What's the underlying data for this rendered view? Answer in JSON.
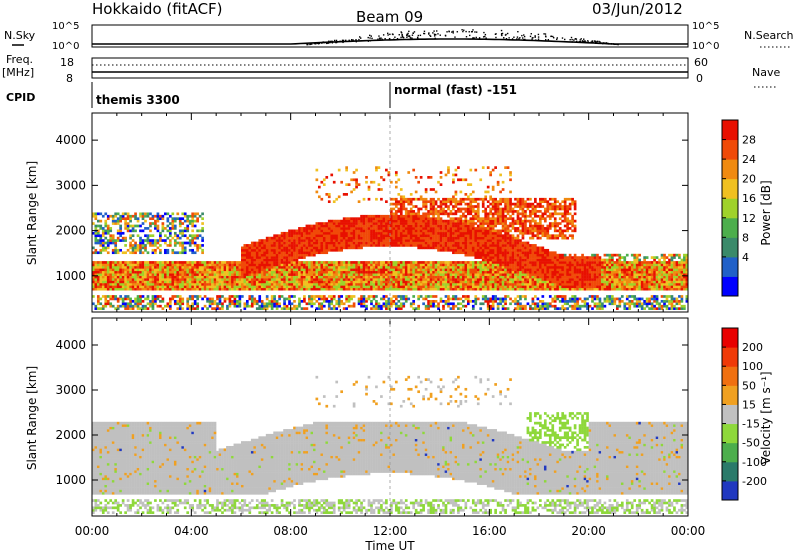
{
  "header": {
    "station": "Hokkaido (fitACF)",
    "beam": "Beam 09",
    "date": "03/Jun/2012"
  },
  "params": {
    "nsky_label": "N.Sky",
    "nsky_ticks": [
      "10^5",
      "10^0"
    ],
    "nsearch_label": "N.Search",
    "nsearch_ticks": [
      "10^5",
      "10^0"
    ],
    "freq_label": "Freq.",
    "freq_unit": "[MHz]",
    "freq_ticks": [
      "18",
      "8"
    ],
    "nave_label": "Nave",
    "nave_ticks": [
      "60",
      "0"
    ],
    "cpid_label": "CPID",
    "cpid_modes": [
      "themis 3300",
      "normal (fast) -151"
    ]
  },
  "chart_data": [
    {
      "type": "heatmap",
      "panel": "power",
      "ylabel": "Slant Range [km]",
      "xlabel": "Time UT",
      "xlim_hours": [
        0,
        24
      ],
      "ylim": [
        200,
        4600
      ],
      "x_ticks": [
        "00:00",
        "04:00",
        "08:00",
        "12:00",
        "16:00",
        "20:00",
        "00:00"
      ],
      "y_ticks": [
        1000,
        2000,
        3000,
        4000
      ],
      "colorbar": {
        "label": "Power [dB]",
        "ticks": [
          "28",
          "24",
          "20",
          "16",
          "12",
          "8",
          "4"
        ],
        "colors": [
          "#0000ff",
          "#2060c8",
          "#3a8a6a",
          "#4cae4c",
          "#9fd22a",
          "#f0c020",
          "#f08a10",
          "#f04a08",
          "#e81000"
        ]
      },
      "echo_bands": [
        {
          "start_h": 0.0,
          "end_h": 24.0,
          "range_km": [
            1000,
            1100
          ],
          "dominant": "red"
        },
        {
          "start_h": 6.0,
          "end_h": 18.0,
          "range_km": [
            1600,
            2600
          ],
          "dominant": "red"
        },
        {
          "start_h": 15.0,
          "end_h": 20.0,
          "range_km": [
            1800,
            2700
          ],
          "dominant": "red"
        },
        {
          "start_h": 0.0,
          "end_h": 4.5,
          "range_km": [
            1500,
            2400
          ],
          "dominant": "mixed"
        }
      ]
    },
    {
      "type": "heatmap",
      "panel": "velocity",
      "ylabel": "Slant Range [km]",
      "xlabel": "Time UT",
      "xlim_hours": [
        0,
        24
      ],
      "ylim": [
        200,
        4600
      ],
      "x_ticks": [
        "00:00",
        "04:00",
        "08:00",
        "12:00",
        "16:00",
        "20:00",
        "00:00"
      ],
      "y_ticks": [
        1000,
        2000,
        3000,
        4000
      ],
      "colorbar": {
        "label": "Velocity [m s⁻¹]",
        "ticks": [
          "200",
          "100",
          "50",
          "15",
          "-15",
          "-50",
          "-100",
          "-200"
        ],
        "colors": [
          "#2038c0",
          "#2a7a6a",
          "#4cae4c",
          "#8ed83a",
          "#c0c0c0",
          "#f0a020",
          "#f07010",
          "#f03a08",
          "#e80000"
        ]
      },
      "dominant_value": "ground scatter (grey, |v| < 15)"
    }
  ]
}
